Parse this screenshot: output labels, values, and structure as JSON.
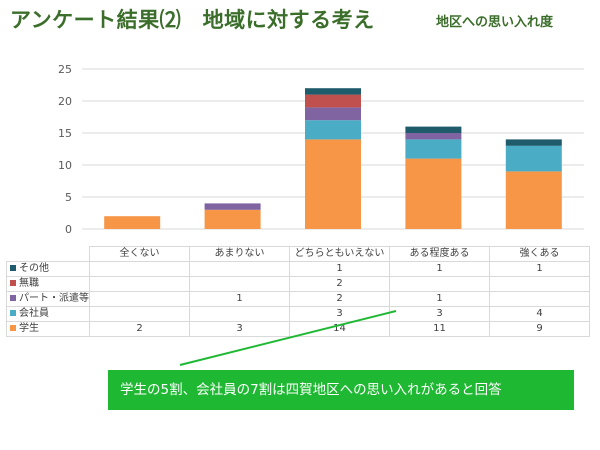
{
  "header": {
    "title": "アンケート結果⑵　地域に対する考え",
    "subtitle": "地区への思い入れ度"
  },
  "note": {
    "text": "学生の5割、会社員の7割は四賀地区への思い入れがあると回答"
  },
  "chart_data": {
    "type": "bar",
    "stacked": true,
    "categories": [
      "全くない",
      "あまりない",
      "どちらともいえない",
      "ある程度ある",
      "強くある"
    ],
    "series": [
      {
        "name": "学生",
        "color": "#f79646",
        "values": [
          2,
          3,
          14,
          11,
          9
        ]
      },
      {
        "name": "会社員",
        "color": "#4bacc6",
        "values": [
          null,
          null,
          3,
          3,
          4
        ]
      },
      {
        "name": "パート・派遣等",
        "color": "#8064a2",
        "values": [
          null,
          1,
          2,
          1,
          null
        ]
      },
      {
        "name": "無職",
        "color": "#c0504d",
        "values": [
          null,
          null,
          2,
          null,
          null
        ]
      },
      {
        "name": "その他",
        "color": "#1f5c6b",
        "values": [
          null,
          null,
          1,
          1,
          1
        ]
      }
    ],
    "series_colors_note_free": true,
    "ylim": [
      0,
      25
    ],
    "yticks": [
      0,
      5,
      10,
      15,
      20,
      25
    ],
    "grid": true,
    "legend": "data-table"
  },
  "colors": {
    "title": "#3b6e2a",
    "grid": "#d9d9d9",
    "note_bg": "#1fb833",
    "pointer": "#1fb833"
  }
}
